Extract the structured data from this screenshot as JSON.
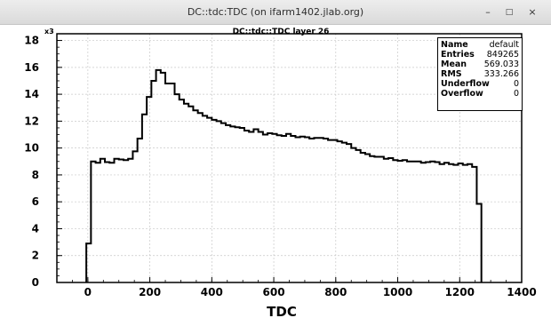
{
  "window": {
    "title": "DC::tdc:TDC (on ifarm1402.jlab.org)",
    "buttons": {
      "minimize": "–",
      "maximize": "□",
      "close": "×"
    }
  },
  "stats": [
    {
      "label": "Name",
      "value": "default"
    },
    {
      "label": "Entries",
      "value": "849265"
    },
    {
      "label": "Mean",
      "value": "569.033"
    },
    {
      "label": "RMS",
      "value": "333.266"
    },
    {
      "label": "Underflow",
      "value": "0"
    },
    {
      "label": "Overflow",
      "value": "0"
    }
  ],
  "chart_data": {
    "type": "histogram",
    "title": "DC::tdc::TDC layer 26",
    "xlabel": "TDC",
    "ylabel": "",
    "y_multiplier_label": "x3",
    "xlim": [
      -100,
      1400
    ],
    "ylim": [
      0,
      18.5
    ],
    "x_ticks": [
      0,
      200,
      400,
      600,
      800,
      1000,
      1200,
      1400
    ],
    "y_ticks": [
      0,
      2,
      4,
      6,
      8,
      10,
      12,
      14,
      16,
      18
    ],
    "grid": true,
    "line_color": "#000000",
    "bin_width": 15,
    "bin_start": -5,
    "values": [
      2.9,
      9.0,
      8.9,
      9.2,
      8.95,
      8.9,
      9.2,
      9.15,
      9.1,
      9.2,
      9.75,
      10.7,
      12.5,
      13.8,
      15.0,
      15.8,
      15.6,
      14.8,
      14.8,
      14.0,
      13.6,
      13.3,
      13.1,
      12.8,
      12.6,
      12.4,
      12.25,
      12.1,
      12.0,
      11.85,
      11.7,
      11.6,
      11.55,
      11.5,
      11.3,
      11.2,
      11.4,
      11.2,
      11.0,
      11.1,
      11.05,
      10.95,
      10.9,
      11.05,
      10.9,
      10.8,
      10.85,
      10.8,
      10.7,
      10.75,
      10.75,
      10.7,
      10.6,
      10.6,
      10.5,
      10.4,
      10.3,
      10.0,
      9.85,
      9.65,
      9.55,
      9.4,
      9.35,
      9.35,
      9.2,
      9.25,
      9.1,
      9.05,
      9.1,
      9.0,
      9.0,
      9.0,
      8.9,
      8.95,
      9.0,
      8.95,
      8.8,
      8.9,
      8.8,
      8.75,
      8.85,
      8.75,
      8.8,
      8.6,
      5.85
    ]
  }
}
